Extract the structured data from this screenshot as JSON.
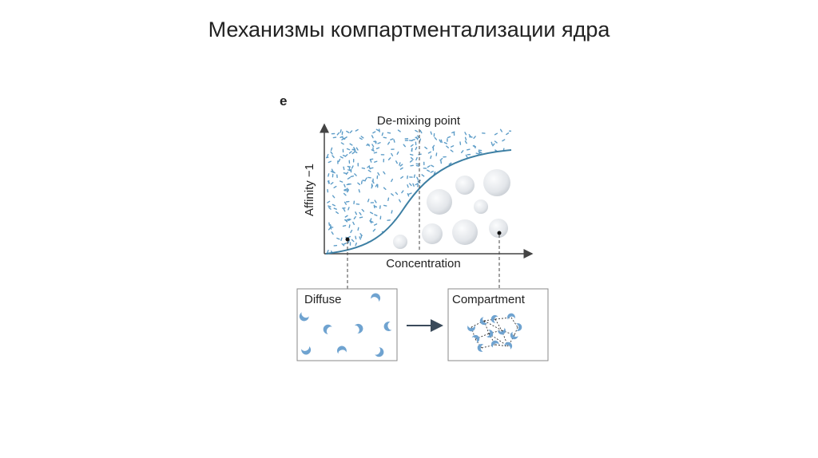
{
  "slide": {
    "title": "Механизмы компартментализации ядра"
  },
  "figure": {
    "panel_label": "e",
    "demix_label": "De-mixing point",
    "y_axis_label": "Affinity −1",
    "x_axis_label": "Concentration",
    "diffuse_label": "Diffuse",
    "compartment_label": "Compartment"
  },
  "colors": {
    "curve": "#3d7fa3",
    "axis": "#444444",
    "dash_fill": "#5e9dc8",
    "crescent": "#6fa3d0",
    "droplet": "#e4e7ea",
    "arrow": "#3a4a5a"
  }
}
